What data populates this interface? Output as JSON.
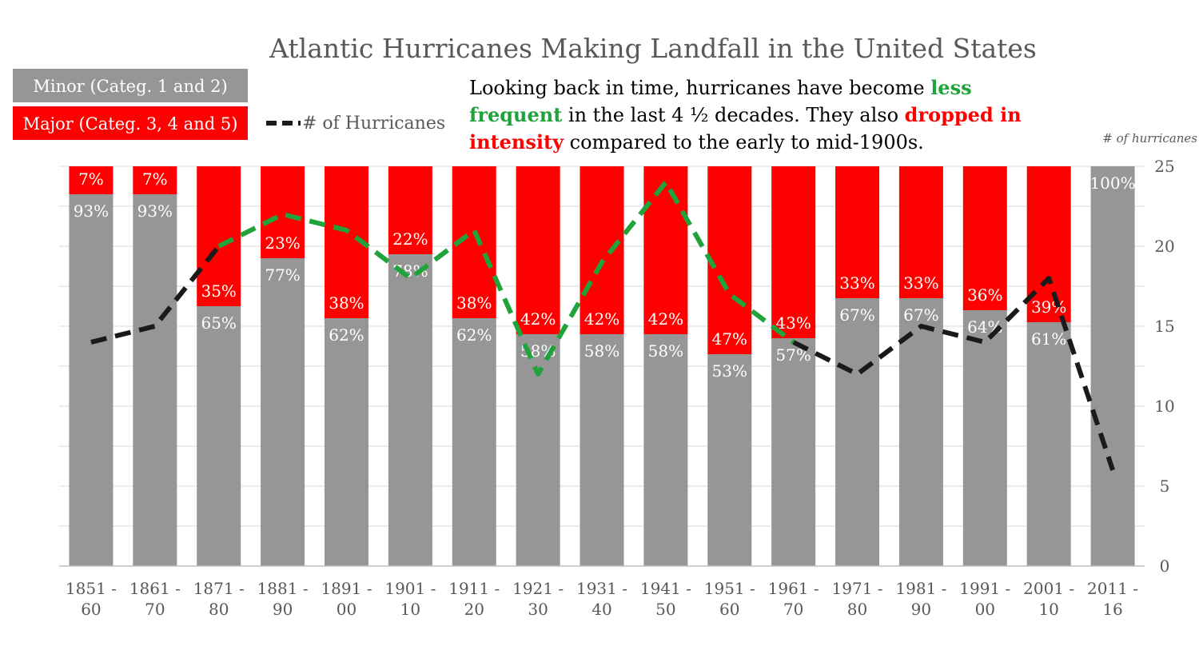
{
  "chart_data": {
    "type": "bar",
    "stacked": true,
    "normalized": true,
    "title": "Atlantic Hurricanes Making Landfall in the United States",
    "categories": [
      [
        "1851 -",
        "60"
      ],
      [
        "1861 -",
        "70"
      ],
      [
        "1871 -",
        "80"
      ],
      [
        "1881 -",
        "90"
      ],
      [
        "1891 -",
        "00"
      ],
      [
        "1901 -",
        "10"
      ],
      [
        "1911 -",
        "20"
      ],
      [
        "1921 -",
        "30"
      ],
      [
        "1931 -",
        "40"
      ],
      [
        "1941 -",
        "50"
      ],
      [
        "1951 -",
        "60"
      ],
      [
        "1961 -",
        "70"
      ],
      [
        "1971 -",
        "80"
      ],
      [
        "1981 -",
        "90"
      ],
      [
        "1991 -",
        "00"
      ],
      [
        "2001 -",
        "10"
      ],
      [
        "2011 -",
        "16"
      ]
    ],
    "series": [
      {
        "name": "Minor (Categ. 1 and 2)",
        "color": "#969696",
        "values": [
          93,
          93,
          65,
          77,
          62,
          78,
          62,
          58,
          58,
          58,
          53,
          57,
          67,
          67,
          64,
          61,
          100
        ],
        "labels": [
          "93%",
          "93%",
          "65%",
          "77%",
          "62%",
          "78%",
          "62%",
          "58%",
          "58%",
          "58%",
          "53%",
          "57%",
          "67%",
          "67%",
          "64%",
          "61%",
          "100%"
        ]
      },
      {
        "name": "Major (Categ. 3, 4 and 5)",
        "color": "#ff0000",
        "values": [
          7,
          7,
          35,
          23,
          38,
          22,
          38,
          42,
          42,
          42,
          47,
          43,
          33,
          33,
          36,
          39,
          0
        ],
        "labels": [
          "7%",
          "7%",
          "35%",
          "23%",
          "38%",
          "22%",
          "38%",
          "42%",
          "42%",
          "42%",
          "47%",
          "43%",
          "33%",
          "33%",
          "36%",
          "39%",
          ""
        ]
      }
    ],
    "line_series": {
      "name": "# of Hurricanes",
      "values": [
        14,
        15,
        20,
        22,
        21,
        18,
        21,
        12,
        19,
        24,
        17,
        14,
        12,
        15,
        14,
        18,
        6
      ],
      "color": "#1a1a1a",
      "highlight_color": "#1fa33a",
      "highlight_range": [
        2,
        11
      ],
      "dashed": true
    },
    "y2_axis": {
      "title": "# of hurricanes",
      "range": [
        0,
        25
      ],
      "ticks": [
        "0",
        "5",
        "10",
        "15",
        "20",
        "25"
      ],
      "position": "right"
    },
    "y_axis": {
      "range": [
        0,
        100
      ],
      "unit": "%"
    },
    "grid": true,
    "legend_position": "top-left"
  },
  "legend": {
    "minor_label": "Minor (Categ. 1 and 2)",
    "major_label": "Major (Categ. 3, 4 and 5)",
    "line_label": "# of Hurricanes"
  },
  "annotation": {
    "line1_part1": "Looking back in time, hurricanes have become ",
    "line1_part2": "less",
    "line2_part1": "frequent",
    "line2_part2": " in the last 4 ½ decades. They also ",
    "line2_part3": "dropped in",
    "line3_part1": "intensity",
    "line3_part2": " compared to the early to mid-1900s."
  },
  "colors": {
    "minor": "#969696",
    "major": "#ff0000",
    "green": "#1fa33a",
    "black_line": "#1a1a1a",
    "text_gray": "#595959",
    "grid": "#d9d9d9"
  }
}
